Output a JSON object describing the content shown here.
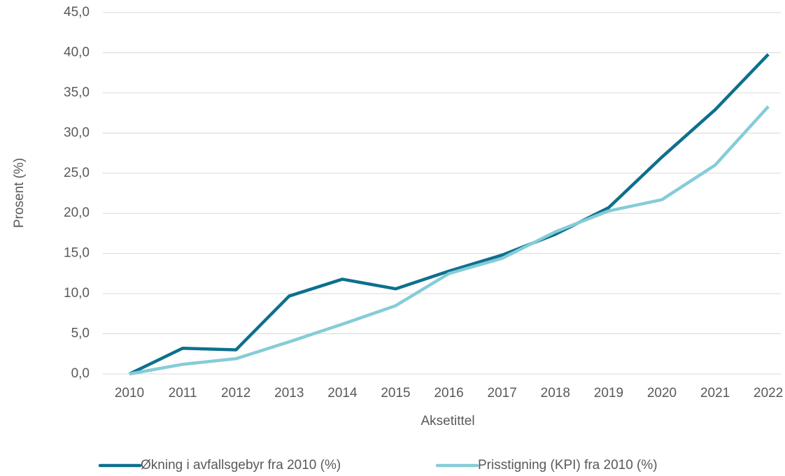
{
  "chart_data": {
    "type": "line",
    "categories": [
      "2010",
      "2011",
      "2012",
      "2013",
      "2014",
      "2015",
      "2016",
      "2017",
      "2018",
      "2019",
      "2020",
      "2021",
      "2022"
    ],
    "series": [
      {
        "name": "Økning i avfallsgebyr fra 2010 (%)",
        "color": "#0e6f8e",
        "values": [
          0,
          3.2,
          3.0,
          9.7,
          11.8,
          10.6,
          12.8,
          14.8,
          17.4,
          20.7,
          27.0,
          32.9,
          39.8
        ]
      },
      {
        "name": "Prisstigning (KPI) fra 2010 (%)",
        "color": "#85ccd8",
        "values": [
          0,
          1.2,
          1.9,
          4.0,
          6.2,
          8.5,
          12.5,
          14.4,
          17.7,
          20.3,
          21.7,
          26.0,
          33.3
        ]
      }
    ],
    "ylabel": "Prosent (%)",
    "xlabel": "Aksetittel",
    "ylim": [
      0,
      45
    ],
    "yticks": [
      {
        "value": 0,
        "label": "0,0"
      },
      {
        "value": 5,
        "label": "5,0"
      },
      {
        "value": 10,
        "label": "10,0"
      },
      {
        "value": 15,
        "label": "15,0"
      },
      {
        "value": 20,
        "label": "20,0"
      },
      {
        "value": 25,
        "label": "25,0"
      },
      {
        "value": 30,
        "label": "30,0"
      },
      {
        "value": 35,
        "label": "35,0"
      },
      {
        "value": 40,
        "label": "40,0"
      },
      {
        "value": 45,
        "label": "45,0"
      }
    ],
    "grid": true,
    "legend": "bottom"
  }
}
